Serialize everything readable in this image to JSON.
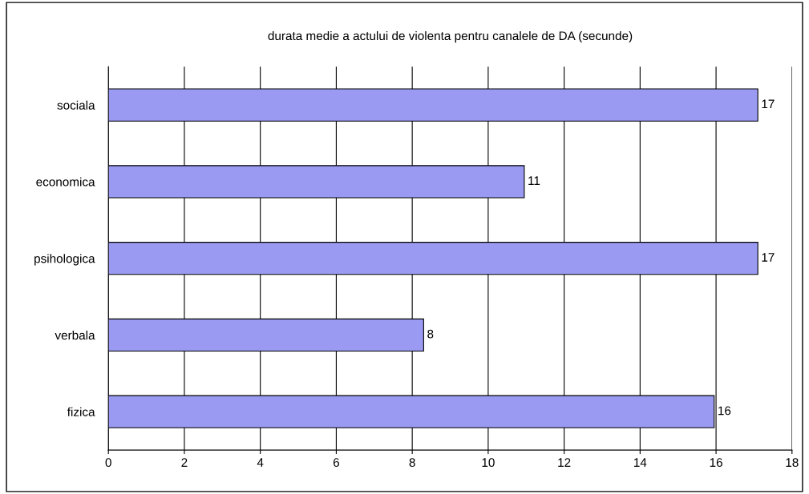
{
  "chart_data": {
    "type": "bar",
    "orientation": "horizontal",
    "title": "durata medie a actului de violenta pentru canalele de DA (secunde)",
    "categories": [
      "sociala",
      "economica",
      "psihologica",
      "verbala",
      "fizica"
    ],
    "values": [
      17.1,
      10.95,
      17.1,
      8.3,
      15.95
    ],
    "value_labels": [
      "17",
      "11",
      "17",
      "8",
      "16"
    ],
    "color": "#9a9af2",
    "xlim": [
      0,
      18
    ],
    "xticks": [
      0,
      2,
      4,
      6,
      8,
      10,
      12,
      14,
      16,
      18
    ],
    "grid": "x"
  }
}
